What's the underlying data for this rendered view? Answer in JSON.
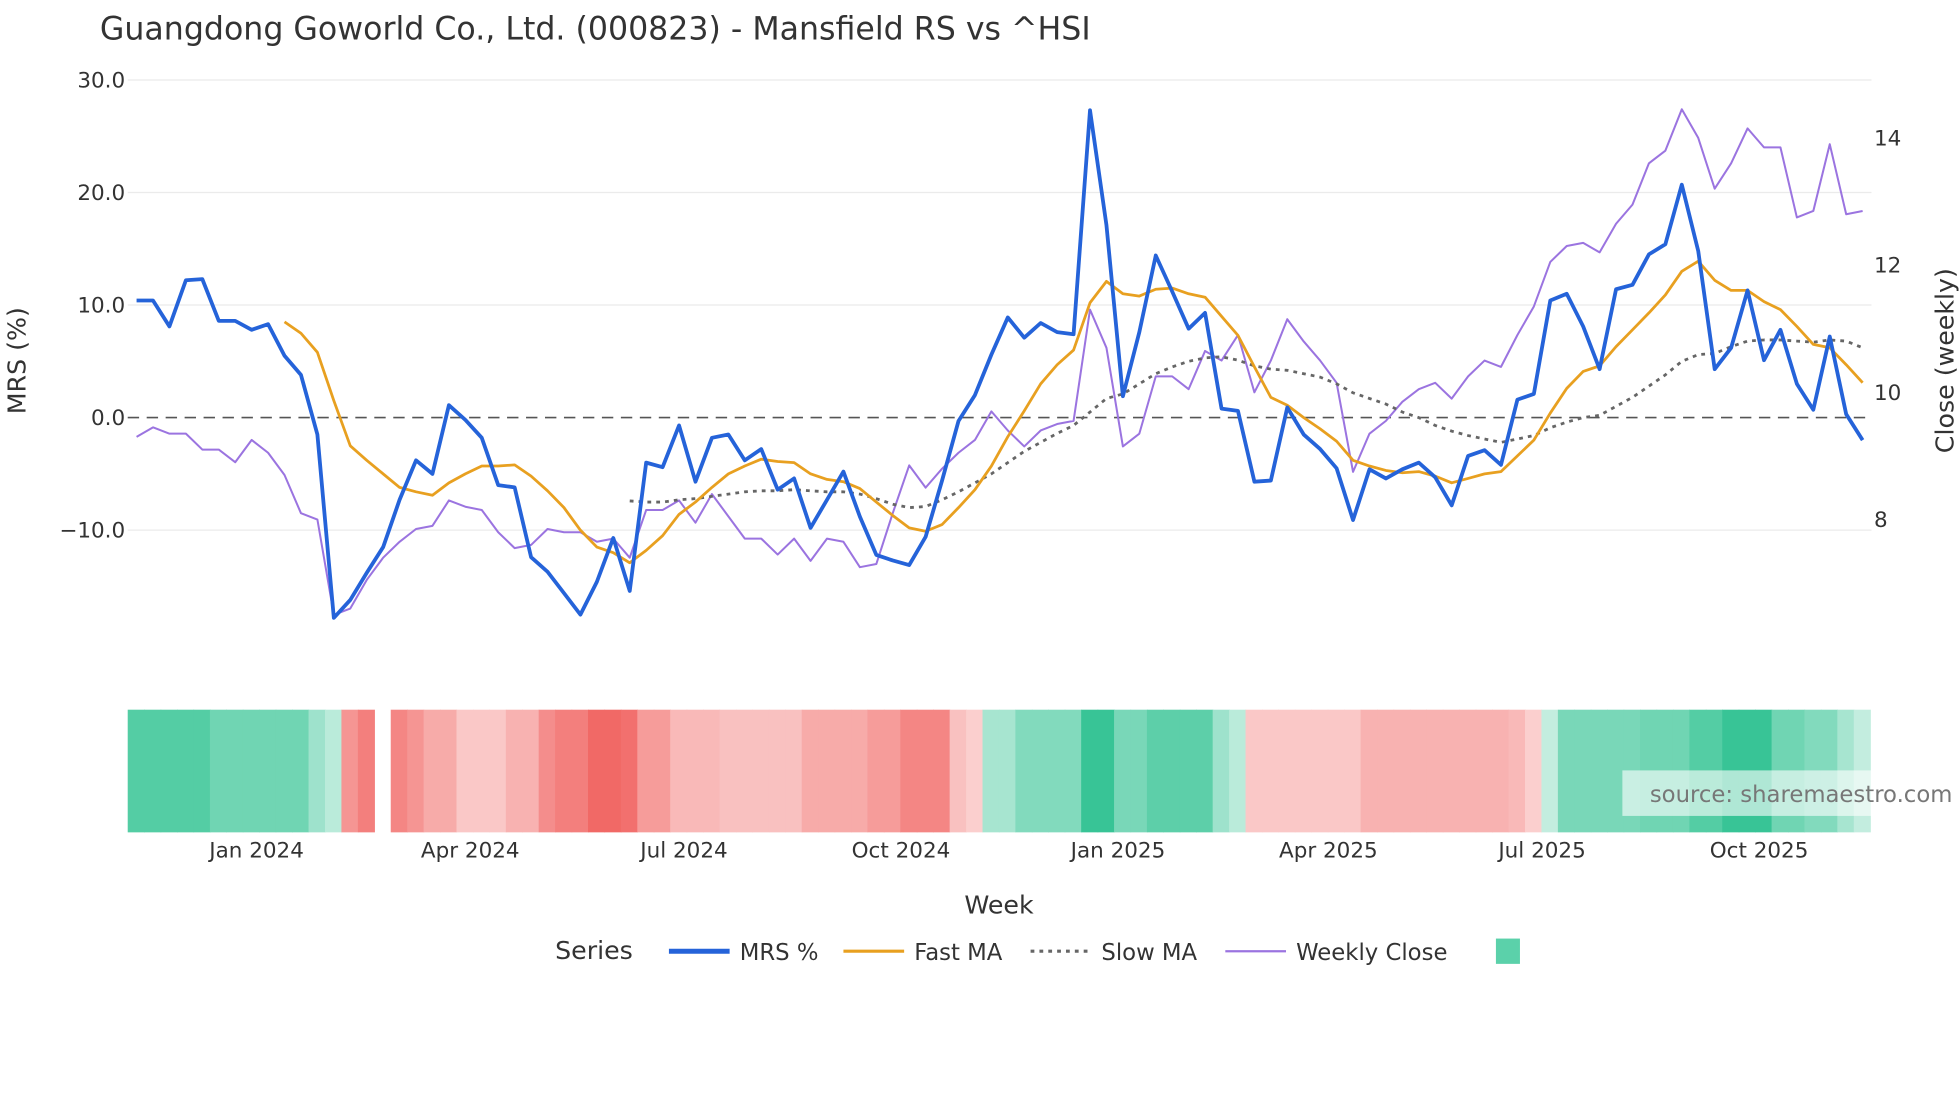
{
  "chart_data": {
    "type": "line",
    "title": "Guangdong Goworld Co., Ltd. (000823) - Mansfield RS vs ^HSI",
    "xlabel": "Week",
    "ylabel": "MRS (%)",
    "y2label": "Close (weekly)",
    "ylim": [
      -19.5,
      30
    ],
    "y2lim": [
      6.15,
      14.88
    ],
    "yticks": [
      "30.0",
      "20.0",
      "10.0",
      "0.0",
      "−10.0"
    ],
    "ytick_values": [
      30,
      20,
      10,
      0,
      -10
    ],
    "y2ticks": [
      "14",
      "12",
      "10",
      "8"
    ],
    "y2tick_values": [
      14,
      12,
      10,
      8
    ],
    "xticks": [
      "Jan 2024",
      "Apr 2024",
      "Jul 2024",
      "Oct 2024",
      "Jan 2025",
      "Apr 2025",
      "Jul 2025",
      "Oct 2025"
    ],
    "xtick_week_index": [
      7.3,
      20.3,
      33.3,
      46.5,
      59.7,
      72.5,
      85.5,
      98.7
    ],
    "grid": true,
    "legend_title": "Series",
    "legend_placement": "bottom-center",
    "source": "source: sharemaestro.com",
    "series": [
      {
        "name": "MRS %",
        "color": "#2563d9",
        "axis": "left",
        "style": "solid",
        "values": [
          10.4,
          10.4,
          8.1,
          12.2,
          12.3,
          8.6,
          8.6,
          7.8,
          8.3,
          5.5,
          3.8,
          -1.5,
          -17.8,
          -16.2,
          -13.8,
          -11.5,
          -7.3,
          -3.8,
          -5,
          1.1,
          -0.2,
          -1.8,
          -6,
          -6.2,
          -12.4,
          -13.7,
          -15.6,
          -17.5,
          -14.6,
          -10.7,
          -15.4,
          -4,
          -4.4,
          -0.7,
          -5.7,
          -1.8,
          -1.5,
          -3.8,
          -2.8,
          -6.4,
          -5.4,
          -9.8,
          -7.3,
          -4.8,
          -8.8,
          -12.2,
          -12.7,
          -13.1,
          -10.6,
          -5.6,
          -0.3,
          2,
          5.6,
          8.9,
          7.1,
          8.4,
          7.6,
          7.4,
          27.3,
          17.1,
          1.9,
          7.6,
          14.4,
          11.2,
          7.9,
          9.3,
          0.8,
          0.6,
          -5.7,
          -5.6,
          0.9,
          -1.5,
          -2.8,
          -4.5,
          -9.1,
          -4.6,
          -5.4,
          -4.6,
          -4,
          -5.3,
          -7.8,
          -3.4,
          -2.9,
          -4.2,
          1.6,
          2.1,
          10.4,
          11,
          8.1,
          4.3,
          11.4,
          11.8,
          14.5,
          15.4,
          20.7,
          14.8,
          4.3,
          6.2,
          11.3,
          5.1,
          7.8,
          3,
          0.7,
          7.2,
          0.3,
          -2
        ]
      },
      {
        "name": "Fast MA",
        "color": "#e8a020",
        "axis": "left",
        "style": "solid",
        "values": [
          null,
          null,
          null,
          null,
          null,
          null,
          null,
          null,
          null,
          8.5,
          7.5,
          5.8,
          1.5,
          -2.5,
          -3.8,
          -5,
          -6.2,
          -6.6,
          -6.9,
          -5.8,
          -5,
          -4.3,
          -4.3,
          -4.2,
          -5.2,
          -6.5,
          -8,
          -10,
          -11.5,
          -12,
          -12.9,
          -11.8,
          -10.5,
          -8.6,
          -7.5,
          -6.2,
          -5,
          -4.3,
          -3.7,
          -3.9,
          -4,
          -5,
          -5.5,
          -5.7,
          -6.3,
          -7.5,
          -8.7,
          -9.8,
          -10.1,
          -9.5,
          -8,
          -6.4,
          -4.3,
          -1.7,
          0.6,
          3,
          4.7,
          6,
          10.2,
          12.1,
          11,
          10.8,
          11.4,
          11.5,
          11,
          10.7,
          9,
          7.3,
          4.5,
          1.8,
          1.1,
          0,
          -1,
          -2.1,
          -3.8,
          -4.3,
          -4.7,
          -4.9,
          -4.8,
          -5.2,
          -5.8,
          -5.4,
          -5,
          -4.8,
          -3.4,
          -2,
          0.4,
          2.6,
          4.1,
          4.6,
          6.3,
          7.8,
          9.3,
          10.9,
          13,
          13.9,
          12.2,
          11.3,
          11.3,
          10.3,
          9.6,
          8.1,
          6.5,
          6.2,
          4.7,
          3.1
        ]
      },
      {
        "name": "Slow MA",
        "color": "#666666",
        "axis": "left",
        "style": "dotted",
        "values": [
          null,
          null,
          null,
          null,
          null,
          null,
          null,
          null,
          null,
          null,
          null,
          null,
          null,
          null,
          null,
          null,
          null,
          null,
          null,
          null,
          null,
          null,
          null,
          null,
          null,
          null,
          null,
          null,
          null,
          null,
          -7.4,
          -7.5,
          -7.5,
          -7.3,
          -7.2,
          -7,
          -6.8,
          -6.6,
          -6.5,
          -6.5,
          -6.4,
          -6.5,
          -6.6,
          -6.6,
          -6.8,
          -7.2,
          -7.7,
          -8,
          -7.9,
          -7.3,
          -6.6,
          -5.8,
          -5,
          -4,
          -3,
          -2.2,
          -1.4,
          -0.7,
          0.5,
          1.7,
          2.1,
          3,
          3.9,
          4.5,
          5,
          5.3,
          5.4,
          5.1,
          4.6,
          4.3,
          4.2,
          3.9,
          3.6,
          3,
          2.2,
          1.7,
          1.2,
          0.5,
          0,
          -0.7,
          -1.2,
          -1.6,
          -1.9,
          -2.2,
          -1.9,
          -1.6,
          -0.9,
          -0.4,
          0,
          0.2,
          1,
          1.8,
          2.8,
          3.8,
          5,
          5.6,
          5.7,
          6.3,
          6.8,
          6.9,
          6.9,
          6.8,
          6.7,
          6.9,
          6.8,
          6.2
        ]
      },
      {
        "name": "Weekly Close",
        "color": "#9b74e0",
        "axis": "right",
        "style": "solid",
        "values": [
          9.3,
          9.45,
          9.35,
          9.35,
          9.1,
          9.1,
          8.9,
          9.25,
          9.05,
          8.7,
          8.1,
          8,
          6.5,
          6.6,
          7.05,
          7.4,
          7.65,
          7.85,
          7.9,
          8.3,
          8.2,
          8.15,
          7.8,
          7.55,
          7.6,
          7.85,
          7.8,
          7.8,
          7.65,
          7.7,
          7.4,
          8.15,
          8.15,
          8.3,
          7.95,
          8.4,
          8.05,
          7.7,
          7.7,
          7.45,
          7.7,
          7.35,
          7.7,
          7.65,
          7.25,
          7.3,
          8.1,
          8.85,
          8.5,
          8.8,
          9.05,
          9.25,
          9.7,
          9.4,
          9.15,
          9.4,
          9.5,
          9.55,
          11.3,
          10.7,
          9.15,
          9.35,
          10.25,
          10.25,
          10.05,
          10.65,
          10.5,
          10.9,
          10,
          10.5,
          11.15,
          10.8,
          10.5,
          10.15,
          8.75,
          9.35,
          9.55,
          9.85,
          10.05,
          10.15,
          9.9,
          10.25,
          10.5,
          10.4,
          10.9,
          11.35,
          12.05,
          12.3,
          12.35,
          12.2,
          12.65,
          12.95,
          13.6,
          13.8,
          14.45,
          14,
          13.2,
          13.6,
          14.15,
          13.85,
          13.85,
          12.75,
          12.85,
          13.9,
          12.8,
          12.85
        ]
      }
    ],
    "heatmap_strip": {
      "positive_color": "#26bf8c",
      "negative_color": "#ef5350",
      "legend_swatch_color": "#5bd1aa",
      "values": [
        0.75,
        0.75,
        0.75,
        0.75,
        0.75,
        0.6,
        0.6,
        0.6,
        0.6,
        0.6,
        0.6,
        0.35,
        0.2,
        -0.55,
        -0.7,
        null,
        -0.65,
        -0.55,
        -0.4,
        -0.4,
        -0.2,
        -0.2,
        -0.2,
        -0.35,
        -0.35,
        -0.6,
        -0.7,
        -0.7,
        -0.85,
        -0.85,
        -0.8,
        -0.5,
        -0.5,
        -0.3,
        -0.3,
        -0.3,
        -0.25,
        -0.25,
        -0.25,
        -0.25,
        -0.25,
        -0.4,
        -0.4,
        -0.4,
        -0.4,
        -0.5,
        -0.5,
        -0.65,
        -0.65,
        -0.65,
        -0.25,
        -0.15,
        0.3,
        0.3,
        0.5,
        0.5,
        0.5,
        0.5,
        0.9,
        0.9,
        0.55,
        0.55,
        0.7,
        0.7,
        0.7,
        0.7,
        0.35,
        0.2,
        -0.2,
        -0.2,
        -0.2,
        -0.2,
        -0.2,
        -0.2,
        -0.2,
        -0.35,
        -0.35,
        -0.35,
        -0.35,
        -0.35,
        -0.35,
        -0.35,
        -0.35,
        -0.35,
        -0.3,
        -0.15,
        0.15,
        0.55,
        0.55,
        0.55,
        0.55,
        0.55,
        0.6,
        0.6,
        0.6,
        0.75,
        0.75,
        0.9,
        0.9,
        0.9,
        0.6,
        0.6,
        0.5,
        0.5,
        0.3,
        0.15
      ]
    }
  }
}
